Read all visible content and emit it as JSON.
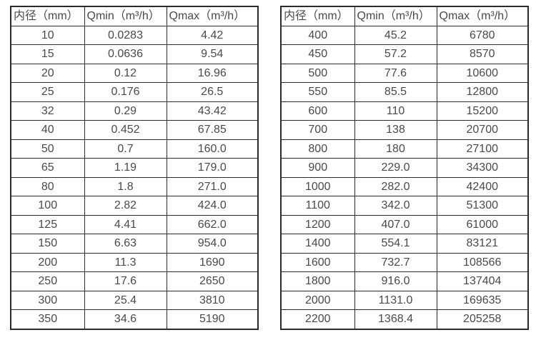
{
  "page": {
    "background": "#ffffff"
  },
  "colors": {
    "border": "#2b2b2b",
    "text": "#4a4a4a",
    "background": "#ffffff"
  },
  "tables": [
    {
      "id": "flow-table-left",
      "headers": [
        "内径（mm）",
        "Qmin（m³/h）",
        "Qmax（m³/h）"
      ],
      "rows": [
        [
          "10",
          "0.0283",
          "4.42"
        ],
        [
          "15",
          "0.0636",
          "9.54"
        ],
        [
          "20",
          "0.12",
          "16.96"
        ],
        [
          "25",
          "0.176",
          "26.5"
        ],
        [
          "32",
          "0.29",
          "43.42"
        ],
        [
          "40",
          "0.452",
          "67.85"
        ],
        [
          "50",
          "0.7",
          "160.0"
        ],
        [
          "65",
          "1.19",
          "179.0"
        ],
        [
          "80",
          "1.8",
          "271.0"
        ],
        [
          "100",
          "2.82",
          "424.0"
        ],
        [
          "125",
          "4.41",
          "662.0"
        ],
        [
          "150",
          "6.63",
          "954.0"
        ],
        [
          "200",
          "11.3",
          "1690"
        ],
        [
          "250",
          "17.6",
          "2650"
        ],
        [
          "300",
          "25.4",
          "3810"
        ],
        [
          "350",
          "34.6",
          "5190"
        ]
      ]
    },
    {
      "id": "flow-table-right",
      "headers": [
        "内径（mm）",
        "Qmin（m³/h）",
        "Qmax（m³/h）"
      ],
      "rows": [
        [
          "400",
          "45.2",
          "6780"
        ],
        [
          "450",
          "57.2",
          "8570"
        ],
        [
          "500",
          "77.6",
          "10600"
        ],
        [
          "550",
          "85.5",
          "12800"
        ],
        [
          "600",
          "110",
          "15200"
        ],
        [
          "700",
          "138",
          "20700"
        ],
        [
          "800",
          "180",
          "27100"
        ],
        [
          "900",
          "229.0",
          "34300"
        ],
        [
          "1000",
          "282.0",
          "42400"
        ],
        [
          "1100",
          "342.0",
          "51300"
        ],
        [
          "1200",
          "407.0",
          "61000"
        ],
        [
          "1400",
          "554.1",
          "83121"
        ],
        [
          "1600",
          "732.7",
          "108566"
        ],
        [
          "1800",
          "916.0",
          "137404"
        ],
        [
          "2000",
          "1131.0",
          "169635"
        ],
        [
          "2200",
          "1368.4",
          "205258"
        ]
      ]
    }
  ]
}
